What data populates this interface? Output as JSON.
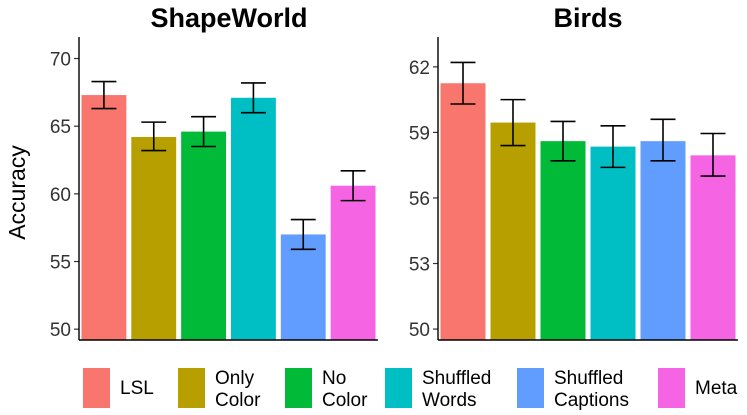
{
  "chart_data": [
    {
      "type": "bar",
      "title": "ShapeWorld",
      "ylabel": "Accuracy",
      "xlabel": "",
      "ylim": [
        49.2,
        71.0
      ],
      "yticks": [
        50,
        55,
        60,
        65,
        70
      ],
      "ytick_labels": [
        "50",
        "55",
        "60",
        "65",
        "70"
      ],
      "categories": [
        "LSL",
        "Only Color",
        "No Color",
        "Shuffled Words",
        "Shuffled Captions",
        "Meta"
      ],
      "values": [
        67.3,
        64.2,
        64.6,
        67.1,
        57.0,
        60.6
      ],
      "err_low": [
        66.3,
        63.2,
        63.5,
        66.0,
        55.9,
        59.5
      ],
      "err_high": [
        68.3,
        65.3,
        65.7,
        68.2,
        58.1,
        61.7
      ]
    },
    {
      "type": "bar",
      "title": "Birds",
      "ylabel": "",
      "xlabel": "",
      "ylim": [
        49.5,
        63.0
      ],
      "yticks": [
        50,
        53,
        56,
        59,
        62
      ],
      "ytick_labels": [
        "50",
        "53",
        "56",
        "59",
        "62"
      ],
      "categories": [
        "LSL",
        "Only Color",
        "No Color",
        "Shuffled Words",
        "Shuffled Captions",
        "Meta"
      ],
      "values": [
        61.25,
        59.45,
        58.6,
        58.35,
        58.6,
        57.95
      ],
      "err_low": [
        60.3,
        58.4,
        57.7,
        57.4,
        57.7,
        57.0
      ],
      "err_high": [
        62.2,
        60.5,
        59.5,
        59.3,
        59.6,
        58.95
      ]
    }
  ],
  "legend": {
    "position": "bottom",
    "items": [
      {
        "lines": [
          "LSL"
        ],
        "color": "#f8766d"
      },
      {
        "lines": [
          "Only",
          "Color"
        ],
        "color": "#b79f00"
      },
      {
        "lines": [
          "No",
          "Color"
        ],
        "color": "#00ba38"
      },
      {
        "lines": [
          "Shuffled",
          "Words"
        ],
        "color": "#00bfc4"
      },
      {
        "lines": [
          "Shuffled",
          "Captions"
        ],
        "color": "#619cff"
      },
      {
        "lines": [
          "Meta"
        ],
        "color": "#f564e3"
      }
    ]
  }
}
